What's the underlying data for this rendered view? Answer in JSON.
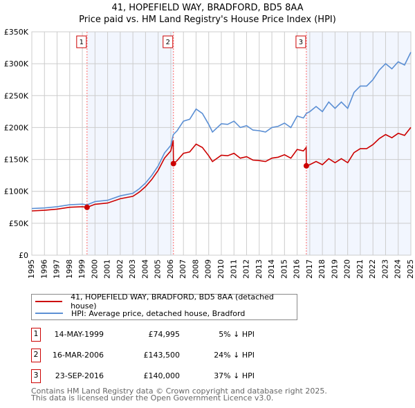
{
  "chart_data": {
    "type": "line",
    "title": "41, HOPEFIELD WAY, BRADFORD, BD5 8AA",
    "subtitle": "Price paid vs. HM Land Registry's House Price Index (HPI)",
    "xlim": [
      1995,
      2025
    ],
    "ylim": [
      0,
      350000
    ],
    "x_ticks": [
      "1995",
      "1996",
      "1997",
      "1998",
      "1999",
      "2000",
      "2001",
      "2002",
      "2003",
      "2004",
      "2005",
      "2006",
      "2007",
      "2008",
      "2009",
      "2010",
      "2011",
      "2012",
      "2013",
      "2014",
      "2015",
      "2016",
      "2017",
      "2018",
      "2019",
      "2020",
      "2021",
      "2022",
      "2023",
      "2024",
      "2025"
    ],
    "y_ticks": [
      {
        "v": 0,
        "label": "£0"
      },
      {
        "v": 50000,
        "label": "£50K"
      },
      {
        "v": 100000,
        "label": "£100K"
      },
      {
        "v": 150000,
        "label": "£150K"
      },
      {
        "v": 200000,
        "label": "£200K"
      },
      {
        "v": 250000,
        "label": "£250K"
      },
      {
        "v": 300000,
        "label": "£300K"
      },
      {
        "v": 350000,
        "label": "£350K"
      }
    ],
    "grid": true,
    "shaded_ranges": [
      [
        1999.37,
        2006.21
      ],
      [
        2016.73,
        2025
      ]
    ],
    "series": [
      {
        "name": "41, HOPEFIELD WAY, BRADFORD, BD5 8AA (detached house)",
        "color": "#cc0000",
        "x": [
          1995,
          1996,
          1997,
          1998,
          1999,
          1999.37,
          2000,
          2001,
          2002,
          2003,
          2003.5,
          2004,
          2004.5,
          2005,
          2005.5,
          2006,
          2006.19,
          2006.21,
          2006.5,
          2007,
          2007.5,
          2008,
          2008.5,
          2009,
          2009.3,
          2010,
          2010.5,
          2011,
          2011.5,
          2012,
          2012.5,
          2013,
          2013.5,
          2014,
          2014.5,
          2015,
          2015.5,
          2016,
          2016.5,
          2016.71,
          2016.73,
          2017,
          2017.5,
          2018,
          2018.5,
          2019,
          2019.5,
          2020,
          2020.5,
          2021,
          2021.5,
          2022,
          2022.5,
          2023,
          2023.5,
          2024,
          2024.5,
          2025
        ],
        "y": [
          69400,
          70300,
          72200,
          75100,
          76000,
          74995,
          79800,
          81700,
          88400,
          92200,
          98800,
          107400,
          118800,
          133000,
          152000,
          163400,
          179600,
          143500,
          148200,
          159600,
          161900,
          174000,
          168700,
          155800,
          146700,
          156600,
          155800,
          159600,
          152000,
          154300,
          149000,
          148200,
          146700,
          152000,
          153500,
          157300,
          152000,
          165700,
          163400,
          168700,
          140000,
          141800,
          146800,
          141800,
          151200,
          144900,
          151200,
          144900,
          160700,
          167000,
          167000,
          173300,
          182700,
          189000,
          184000,
          190900,
          187700,
          200300
        ]
      },
      {
        "name": "HPI: Average price, detached house, Bradford",
        "color": "#5b8fd4",
        "x": [
          1995,
          1996,
          1997,
          1998,
          1999,
          1999.37,
          2000,
          2001,
          2002,
          2003,
          2003.5,
          2004,
          2004.5,
          2005,
          2005.5,
          2006,
          2006.2,
          2006.5,
          2007,
          2007.5,
          2008,
          2008.5,
          2009,
          2009.3,
          2010,
          2010.5,
          2011,
          2011.5,
          2012,
          2012.5,
          2013,
          2013.5,
          2014,
          2014.5,
          2015,
          2015.5,
          2016,
          2016.5,
          2016.73,
          2017,
          2017.5,
          2018,
          2018.5,
          2019,
          2019.5,
          2020,
          2020.5,
          2021,
          2021.5,
          2022,
          2022.5,
          2023,
          2023.5,
          2024,
          2024.5,
          2025
        ],
        "y": [
          73000,
          74000,
          76000,
          79000,
          80000,
          78900,
          84000,
          86000,
          93000,
          97000,
          104000,
          113000,
          125000,
          140000,
          160000,
          172000,
          189000,
          195000,
          210000,
          213000,
          229000,
          222000,
          205000,
          193000,
          206000,
          205000,
          210000,
          200000,
          203000,
          196000,
          195000,
          193000,
          200000,
          202000,
          207000,
          200000,
          218000,
          215000,
          222000,
          225000,
          233000,
          225000,
          240000,
          230000,
          240000,
          230000,
          255000,
          265000,
          265000,
          275000,
          290000,
          300000,
          292000,
          303000,
          298000,
          318000
        ]
      }
    ],
    "sales": [
      {
        "n": "1",
        "x": 1999.37,
        "y": 74995,
        "date": "14-MAY-1999",
        "price": "£74,995",
        "hpi": "5% ↓ HPI"
      },
      {
        "n": "2",
        "x": 2006.21,
        "y": 143500,
        "date": "16-MAR-2006",
        "price": "£143,500",
        "hpi": "24% ↓ HPI"
      },
      {
        "n": "3",
        "x": 2016.73,
        "y": 140000,
        "date": "23-SEP-2016",
        "price": "£140,000",
        "hpi": "37% ↓ HPI"
      }
    ],
    "legend": [
      "41, HOPEFIELD WAY, BRADFORD, BD5 8AA (detached house)",
      "HPI: Average price, detached house, Bradford"
    ],
    "legend_placement": "below"
  },
  "footer": {
    "line1": "Contains HM Land Registry data © Crown copyright and database right 2025.",
    "line2": "This data is licensed under the Open Government Licence v3.0."
  }
}
